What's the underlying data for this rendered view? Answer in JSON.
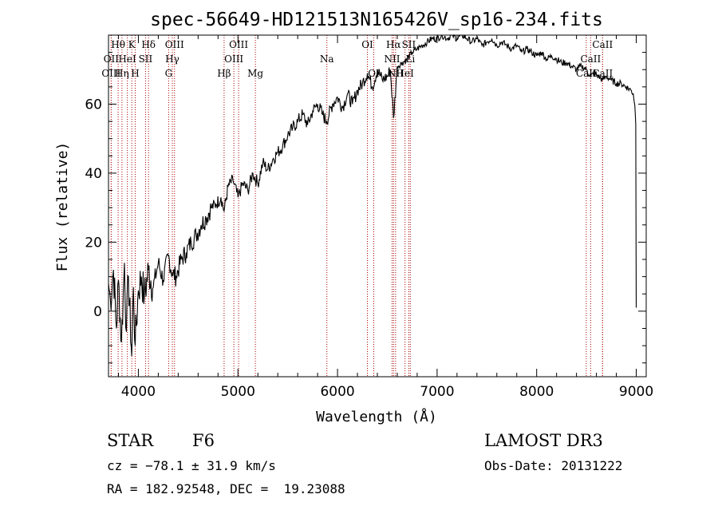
{
  "chart_data": {
    "type": "line",
    "title": "spec-56649-HD121513N165426V_sp16-234.fits",
    "xlabel": "Wavelength (Å)",
    "ylabel": "Flux (relative)",
    "xlim": [
      3700,
      9100
    ],
    "ylim": [
      -19,
      80
    ],
    "x_ticks": [
      4000,
      5000,
      6000,
      7000,
      8000,
      9000
    ],
    "y_ticks": [
      0,
      20,
      40,
      60
    ],
    "series": [
      {
        "name": "spectrum",
        "x": [
          3700,
          3720,
          3750,
          3780,
          3800,
          3830,
          3860,
          3880,
          3900,
          3933,
          3950,
          3968,
          4000,
          4030,
          4060,
          4101,
          4150,
          4200,
          4250,
          4300,
          4340,
          4380,
          4430,
          4480,
          4530,
          4580,
          4630,
          4680,
          4730,
          4780,
          4830,
          4861,
          4900,
          4950,
          5000,
          5050,
          5100,
          5150,
          5200,
          5250,
          5300,
          5350,
          5400,
          5450,
          5500,
          5550,
          5600,
          5650,
          5700,
          5750,
          5800,
          5850,
          5890,
          5950,
          6000,
          6050,
          6100,
          6150,
          6200,
          6250,
          6300,
          6350,
          6400,
          6450,
          6500,
          6530,
          6563,
          6600,
          6650,
          6700,
          6750,
          6800,
          6850,
          6900,
          6950,
          7000,
          7050,
          7100,
          7150,
          7200,
          7250,
          7300,
          7350,
          7400,
          7450,
          7500,
          7550,
          7600,
          7650,
          7700,
          7750,
          7800,
          7850,
          7900,
          7950,
          8000,
          8050,
          8100,
          8150,
          8200,
          8250,
          8300,
          8350,
          8400,
          8450,
          8500,
          8542,
          8580,
          8620,
          8662,
          8700,
          8750,
          8800,
          8850,
          8900,
          8950,
          8970,
          8985,
          8995,
          9000
        ],
        "values": [
          8,
          3,
          12,
          -5,
          9,
          -9,
          14,
          -6,
          10,
          -13,
          7,
          -10,
          6,
          10,
          4,
          12,
          7,
          14,
          9,
          16,
          11,
          10,
          15,
          17,
          20,
          22,
          25,
          27,
          30,
          31,
          33,
          29,
          36,
          38,
          33,
          37,
          35,
          40,
          37,
          43,
          41,
          44,
          46,
          48,
          51,
          53,
          55,
          57,
          54,
          58,
          60,
          57,
          55,
          60,
          62,
          59,
          63,
          60,
          64,
          66,
          69,
          65,
          70,
          67,
          68,
          70,
          56,
          71,
          72,
          73,
          75,
          76,
          77,
          78,
          79,
          79,
          80,
          79,
          80,
          79,
          80,
          79,
          78,
          79,
          77,
          78,
          79,
          77,
          78,
          77,
          76,
          77,
          75,
          76,
          75,
          74,
          75,
          73,
          74,
          73,
          72,
          72,
          71,
          70,
          71,
          70,
          68,
          69,
          68,
          67,
          68,
          67,
          66,
          66,
          65,
          64,
          63,
          60,
          54,
          1
        ]
      }
    ],
    "lines": [
      {
        "wl": 3797,
        "label": "Hθ",
        "row": 0
      },
      {
        "wl": 3727,
        "label": "OII",
        "row": 1
      },
      {
        "wl": 3727,
        "label": "OIII",
        "row": 2
      },
      {
        "wl": 3835,
        "label": "Hη",
        "row": 2
      },
      {
        "wl": 3889,
        "label": "HeI",
        "row": 1
      },
      {
        "wl": 3934,
        "label": "K",
        "row": 0
      },
      {
        "wl": 3968,
        "label": "H",
        "row": 2
      },
      {
        "wl": 4072,
        "label": "SII",
        "row": 1
      },
      {
        "wl": 4102,
        "label": "Hδ",
        "row": 0
      },
      {
        "wl": 4304,
        "label": "G",
        "row": 2
      },
      {
        "wl": 4341,
        "label": "Hγ",
        "row": 1
      },
      {
        "wl": 4363,
        "label": "OIII",
        "row": 0
      },
      {
        "wl": 4861,
        "label": "Hβ",
        "row": 2
      },
      {
        "wl": 4959,
        "label": "OIII",
        "row": 1
      },
      {
        "wl": 5007,
        "label": "OIII",
        "row": 0
      },
      {
        "wl": 5175,
        "label": "Mg",
        "row": 2
      },
      {
        "wl": 5893,
        "label": "Na",
        "row": 1
      },
      {
        "wl": 6300,
        "label": "OI",
        "row": 0
      },
      {
        "wl": 6364,
        "label": "OI",
        "row": 2
      },
      {
        "wl": 6548,
        "label": "NII",
        "row": 1
      },
      {
        "wl": 6563,
        "label": "Hα",
        "row": 0
      },
      {
        "wl": 6583,
        "label": "NII",
        "row": 2
      },
      {
        "wl": 6678,
        "label": "HeI",
        "row": 2
      },
      {
        "wl": 6716,
        "label": "SII",
        "row": 0
      },
      {
        "wl": 6731,
        "label": "Li",
        "row": 1
      },
      {
        "wl": 8498,
        "label": "CaII",
        "row": 2
      },
      {
        "wl": 8542,
        "label": "CaII",
        "row": 1
      },
      {
        "wl": 8662,
        "label": "CaII",
        "row": 0
      },
      {
        "wl": 8662,
        "label": "CaII",
        "row": 2
      }
    ]
  },
  "info": {
    "object_class": "STAR",
    "subclass": "F6",
    "survey": "LAMOST DR3",
    "redshift": "cz = −78.1 ± 31.9 km/s",
    "obs_date": "Obs-Date: 20131222",
    "coords": "RA = 182.92548, DEC =  19.23088"
  },
  "colors": {
    "spectrum": "#000000",
    "line_marker": "#aa0000",
    "axis": "#000000"
  }
}
